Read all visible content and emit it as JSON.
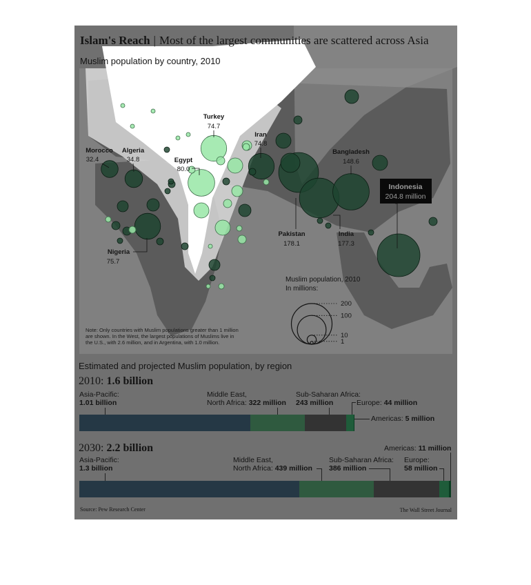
{
  "headline": {
    "bold": "Islam's Reach",
    "separator": "|",
    "text": "Most of the largest communities are scattered across Asia"
  },
  "map_subtitle": "Muslim population by country, 2010",
  "map_note": [
    "Note: Only countries with Muslim populations greater than 1 million",
    "are shown. In the West, the largest populations of Muslims live in",
    "the U.S., with 2.6 million, and in Argentina, with 1.0 million."
  ],
  "legend": {
    "title": "Muslim population, 2010",
    "subtitle": "In millions:",
    "values": [
      200,
      100,
      10,
      1
    ]
  },
  "bars_title": "Estimated and projected Muslim population, by region",
  "year_2010": {
    "year": "2010:",
    "total": "1.6 billion"
  },
  "year_2030": {
    "year": "2030:",
    "total": "2.2 billion"
  },
  "labels_2010": {
    "asia_line1": "Asia-Pacific:",
    "asia_value": "1.01 billion",
    "mena_line1": "Middle East,",
    "mena_line2": "North Africa:",
    "mena_value": "322 million",
    "ssa_line1": "Sub-Saharan Africa:",
    "ssa_value": "243 million",
    "europe_name": "Europe:",
    "europe_value": "44 million",
    "americas_name": "Americas:",
    "americas_value": "5 million"
  },
  "labels_2030": {
    "asia_line1": "Asia-Pacific:",
    "asia_value": "1.3 billion",
    "mena_line1": "Middle East,",
    "mena_line2": "North Africa:",
    "mena_value": "439 million",
    "ssa_line1": "Sub-Saharan Africa:",
    "ssa_value": "386 million",
    "europe_name": "Europe:",
    "europe_value": "58 million",
    "americas_name": "Americas:",
    "americas_value": "11 million"
  },
  "source": "Source: Pew Research Center",
  "credit": "The Wall Street Journal",
  "colors": {
    "asia": "#253845",
    "mena": "#2f5a3f",
    "ssa": "#333333",
    "europe": "#1f5c3a",
    "americas": "#0b3d22",
    "bubble_dark": "#1d4430",
    "bubble_light": "#98e6a6",
    "map_land": "#5b5b5b",
    "card": "#707070"
  },
  "chart_data": [
    {
      "type": "scatter",
      "title": "Muslim population by country, 2010",
      "unit": "millions",
      "labeled_points": [
        {
          "name": "Morocco",
          "value": 32.4
        },
        {
          "name": "Algeria",
          "value": 34.8
        },
        {
          "name": "Egypt",
          "value": 80.0
        },
        {
          "name": "Turkey",
          "value": 74.7
        },
        {
          "name": "Iran",
          "value": 74.8
        },
        {
          "name": "Nigeria",
          "value": 75.7
        },
        {
          "name": "Pakistan",
          "value": 178.1
        },
        {
          "name": "India",
          "value": 177.3
        },
        {
          "name": "Bangladesh",
          "value": 148.6
        },
        {
          "name": "Indonesia",
          "value": 204.8
        }
      ]
    },
    {
      "type": "bar",
      "title": "Estimated and projected Muslim population, by region",
      "categories": [
        "2010",
        "2030"
      ],
      "series": [
        {
          "name": "Asia-Pacific",
          "values": [
            1010,
            1300
          ]
        },
        {
          "name": "Middle East, North Africa",
          "values": [
            322,
            439
          ]
        },
        {
          "name": "Sub-Saharan Africa",
          "values": [
            243,
            386
          ]
        },
        {
          "name": "Europe",
          "values": [
            44,
            58
          ]
        },
        {
          "name": "Americas",
          "values": [
            5,
            11
          ]
        }
      ],
      "unit": "millions",
      "totals": [
        "1.6 billion",
        "2.2 billion"
      ]
    }
  ]
}
